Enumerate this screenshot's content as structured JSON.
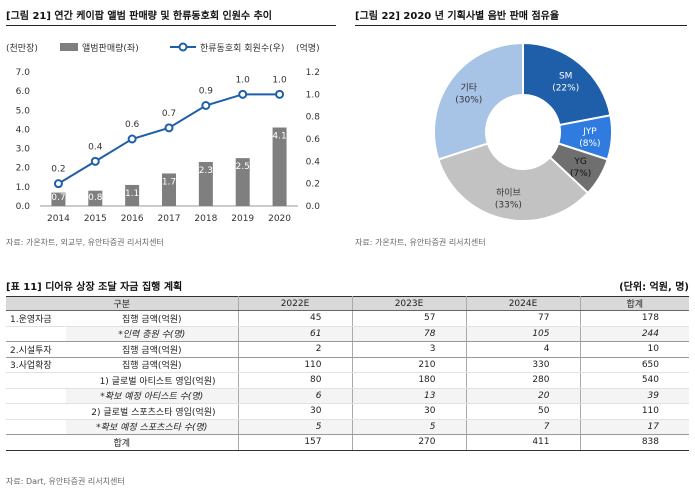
{
  "fig21": {
    "title": "[그림 21] 연간 케이팝 앨범 판매량 및 한류동호회 인원수 추이",
    "source": "자료: 가온차트, 외교부, 유안타증권 리서치센터",
    "chart_data": {
      "type": "bar+line",
      "categories": [
        "2014",
        "2015",
        "2016",
        "2017",
        "2018",
        "2019",
        "2020"
      ],
      "series": [
        {
          "name": "앨범판매량(좌)",
          "type": "bar",
          "axis": "left",
          "color": "#7f7f7f",
          "values": [
            0.7,
            0.8,
            1.1,
            1.7,
            2.3,
            2.5,
            4.1
          ]
        },
        {
          "name": "한류동호회 회원수(우)",
          "type": "line",
          "axis": "right",
          "color": "#1f5ea8",
          "values": [
            0.2,
            0.4,
            0.6,
            0.7,
            0.9,
            1.0,
            1.0
          ]
        }
      ],
      "y_left_unit": "(천만장)",
      "y_right_unit": "(억명)",
      "y_left_ticks": [
        "0.0",
        "1.0",
        "2.0",
        "3.0",
        "4.0",
        "5.0",
        "6.0",
        "7.0"
      ],
      "y_right_ticks": [
        "0.0",
        "0.2",
        "0.4",
        "0.6",
        "0.8",
        "1.0",
        "1.2"
      ],
      "ylim_left": [
        0,
        7
      ],
      "ylim_right": [
        0,
        1.2
      ],
      "grid": false,
      "legend_position": "top"
    }
  },
  "fig22": {
    "title": "[그림 22] 2020 년 기획사별 음반 판매 점유율",
    "source": "자료: 가온차트, 유안타증권 리서치센터",
    "chart_data": {
      "type": "pie",
      "donut": true,
      "slices": [
        {
          "label": "SM",
          "pct": "(22%)",
          "value": 22,
          "color": "#1f5ea8"
        },
        {
          "label": "JYP",
          "pct": "(8%)",
          "value": 8,
          "color": "#2f7be0"
        },
        {
          "label": "YG",
          "pct": "(7%)",
          "value": 7,
          "color": "#6f6f6f"
        },
        {
          "label": "하이브",
          "pct": "(33%)",
          "value": 33,
          "color": "#c2c2c2"
        },
        {
          "label": "기타",
          "pct": "(30%)",
          "value": 30,
          "color": "#a7c3e6"
        }
      ]
    }
  },
  "table11": {
    "title": "[표 11] 디어유 상장 조달 자금 집행 계획",
    "unit": "(단위: 억원, 명)",
    "headers": [
      "구분",
      "2022E",
      "2023E",
      "2024E",
      "합계"
    ],
    "rows": [
      {
        "group": "1.운영자금",
        "item": "집행 금액(억원)",
        "vals": [
          "45",
          "57",
          "77",
          "178"
        ]
      },
      {
        "group": "",
        "item": "*인력 충원 수(명)",
        "vals": [
          "61",
          "78",
          "105",
          "244"
        ]
      },
      {
        "group": "2.시설투자",
        "item": "집행 금액(억원)",
        "vals": [
          "2",
          "3",
          "4",
          "10"
        ]
      },
      {
        "group": "3.사업확장",
        "item": "집행 금액(억원)",
        "vals": [
          "110",
          "210",
          "330",
          "650"
        ]
      },
      {
        "group": "",
        "item": "1) 글로벌 아티스트 영입(억원)",
        "vals": [
          "80",
          "180",
          "280",
          "540"
        ]
      },
      {
        "group": "",
        "item": "*확보 예정 아티스트 수(명)",
        "vals": [
          "6",
          "13",
          "20",
          "39"
        ]
      },
      {
        "group": "",
        "item": "2) 글로벌 스포츠스타 영입(억원)",
        "vals": [
          "30",
          "30",
          "50",
          "110"
        ]
      },
      {
        "group": "",
        "item": "*확보 예정 스포츠스타 수(명)",
        "vals": [
          "5",
          "5",
          "7",
          "17"
        ]
      }
    ],
    "total": {
      "label": "합계",
      "vals": [
        "157",
        "270",
        "411",
        "838"
      ]
    },
    "source": "자료: Dart, 유안타증권 리서치센터"
  }
}
